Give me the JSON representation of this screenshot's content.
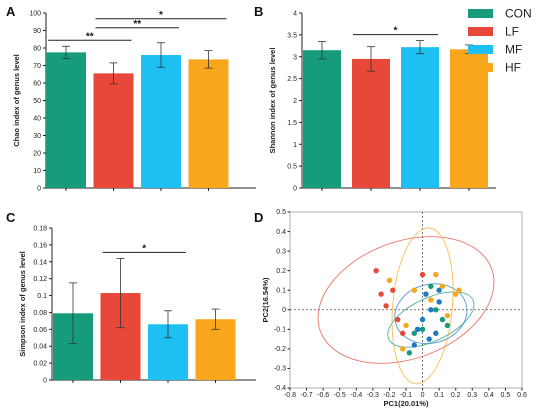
{
  "legend": [
    {
      "label": "CON",
      "color": "#169b7b"
    },
    {
      "label": "LF",
      "color": "#e7483a"
    },
    {
      "label": "MF",
      "color": "#1ec0f2"
    },
    {
      "label": "HF",
      "color": "#f8a61c"
    }
  ],
  "chart_data": [
    {
      "panel": "A",
      "type": "bar",
      "categories": [
        "CON",
        "LF",
        "MF",
        "HF"
      ],
      "values": [
        77.5,
        65.5,
        76,
        73.5
      ],
      "errors": [
        3.5,
        6.0,
        7.0,
        5.0
      ],
      "ylabel": "Chao index of genus level",
      "ylim": [
        0,
        100
      ],
      "yticks": [
        "0",
        "10",
        "20",
        "30",
        "40",
        "50",
        "60",
        "70",
        "80",
        "90",
        "100"
      ],
      "significance": [
        {
          "from": 0,
          "to": 1,
          "label": "**"
        },
        {
          "from": 1,
          "to": 2,
          "label": "**"
        },
        {
          "from": 1,
          "to": 3,
          "label": "*"
        }
      ]
    },
    {
      "panel": "B",
      "type": "bar",
      "categories": [
        "CON",
        "LF",
        "MF",
        "HF"
      ],
      "values": [
        3.15,
        2.95,
        3.22,
        3.17
      ],
      "errors": [
        0.2,
        0.28,
        0.15,
        0.1
      ],
      "ylabel": "Shannon index of genus level",
      "ylim": [
        0,
        4
      ],
      "yticks": [
        "0",
        "0.5",
        "1",
        "1.5",
        "2",
        "2.5",
        "3",
        "3.5",
        "4"
      ],
      "significance": [
        {
          "from": 1,
          "to": 2,
          "label": "*"
        }
      ]
    },
    {
      "panel": "C",
      "type": "bar",
      "categories": [
        "CON",
        "LF",
        "MF",
        "HF"
      ],
      "values": [
        0.079,
        0.103,
        0.066,
        0.072
      ],
      "errors": [
        0.036,
        0.041,
        0.016,
        0.012
      ],
      "ylabel": "Simpson index of genus level",
      "ylim": [
        0,
        0.18
      ],
      "yticks": [
        "0",
        "0.02",
        "0.04",
        "0.06",
        "0.08",
        "0.1",
        "0.12",
        "0.14",
        "0.16",
        "0.18"
      ],
      "significance": [
        {
          "from": 1,
          "to": 2,
          "label": "*"
        }
      ]
    },
    {
      "panel": "D",
      "type": "scatter",
      "xlabel": "PC1(20.01%)",
      "ylabel": "PC2(16.54%)",
      "xlim": [
        -0.8,
        0.6
      ],
      "ylim": [
        -0.4,
        0.5
      ],
      "xticks": [
        "-0.8",
        "-0.7",
        "-0.6",
        "-0.5",
        "-0.4",
        "-0.3",
        "-0.2",
        "-0.1",
        "0",
        "0.1",
        "0.2",
        "0.3",
        "0.4",
        "0.5",
        "0.6"
      ],
      "yticks": [
        "-0.4",
        "-0.3",
        "-0.2",
        "-0.1",
        "0",
        "0.1",
        "0.2",
        "0.3",
        "0.4",
        "0.5"
      ],
      "series": [
        {
          "name": "CON",
          "color": "#169b7b",
          "points": [
            [
              0.12,
              -0.05
            ],
            [
              0.08,
              0.0
            ],
            [
              -0.05,
              -0.12
            ],
            [
              0.05,
              0.12
            ],
            [
              -0.08,
              -0.22
            ],
            [
              0.0,
              -0.1
            ],
            [
              0.15,
              -0.08
            ]
          ],
          "ellipse": {
            "cx": 0.05,
            "cy": -0.05,
            "rx": 0.28,
            "ry": 0.11,
            "angle": -25
          }
        },
        {
          "name": "LF",
          "color": "#e7483a",
          "points": [
            [
              -0.28,
              0.2
            ],
            [
              -0.18,
              0.1
            ],
            [
              -0.22,
              0.02
            ],
            [
              -0.15,
              -0.05
            ],
            [
              0.0,
              0.18
            ],
            [
              -0.12,
              -0.12
            ],
            [
              -0.25,
              0.08
            ]
          ],
          "ellipse": {
            "cx": -0.1,
            "cy": 0.05,
            "rx": 0.55,
            "ry": 0.3,
            "angle": -20
          }
        },
        {
          "name": "MF",
          "color": "#1e78c8",
          "points": [
            [
              0.02,
              0.08
            ],
            [
              0.05,
              0.0
            ],
            [
              0.1,
              0.04
            ],
            [
              0.0,
              -0.05
            ],
            [
              -0.03,
              -0.1
            ],
            [
              0.08,
              -0.12
            ],
            [
              0.1,
              0.1
            ],
            [
              0.04,
              -0.15
            ],
            [
              -0.05,
              -0.18
            ]
          ],
          "ellipse": {
            "cx": 0.05,
            "cy": -0.02,
            "rx": 0.22,
            "ry": 0.15,
            "angle": -15
          }
        },
        {
          "name": "HF",
          "color": "#f8a61c",
          "points": [
            [
              0.2,
              0.08
            ],
            [
              0.12,
              0.12
            ],
            [
              -0.1,
              -0.08
            ],
            [
              0.05,
              0.05
            ],
            [
              -0.2,
              0.15
            ],
            [
              0.08,
              0.18
            ],
            [
              -0.12,
              -0.2
            ],
            [
              0.15,
              -0.03
            ],
            [
              -0.05,
              0.1
            ],
            [
              0.22,
              0.1
            ]
          ],
          "ellipse": {
            "cx": 0.0,
            "cy": 0.02,
            "rx": 0.18,
            "ry": 0.4,
            "angle": 5
          }
        }
      ]
    }
  ]
}
